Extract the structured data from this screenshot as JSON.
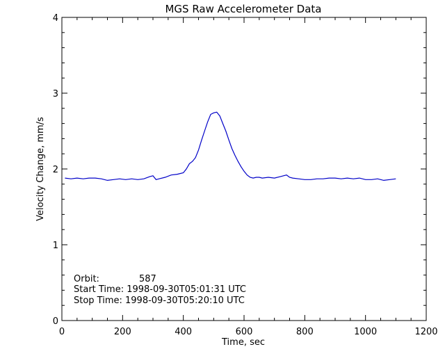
{
  "colors": {
    "series": "#0000c8",
    "axes": "#000000",
    "background": "#ffffff"
  },
  "chart_data": {
    "type": "line",
    "title": "MGS Raw Accelerometer Data",
    "xlabel": "Time, sec",
    "ylabel": "Velocity Change, mm/s",
    "xlim": [
      0,
      1200
    ],
    "ylim": [
      0,
      4
    ],
    "xticks": [
      0,
      200,
      400,
      600,
      800,
      1000,
      1200
    ],
    "xtick_labels": [
      "0",
      "200",
      "400",
      "600",
      "800",
      "1000",
      "1200"
    ],
    "yticks": [
      0,
      1,
      2,
      3,
      4
    ],
    "ytick_labels": [
      "0",
      "1",
      "2",
      "3",
      "4"
    ],
    "grid": false,
    "annotations": {
      "orbit_label": "Orbit:",
      "orbit_value": "587",
      "start_time": "Start Time: 1998-09-30T05:01:31 UTC",
      "stop_time": "Stop Time: 1998-09-30T05:20:10 UTC"
    },
    "series": [
      {
        "x": [
          10,
          30,
          50,
          70,
          90,
          110,
          130,
          150,
          170,
          190,
          210,
          230,
          250,
          270,
          290,
          300,
          310,
          320,
          340,
          360,
          380,
          400,
          410,
          420,
          430,
          440,
          450,
          460,
          470,
          480,
          490,
          500,
          510,
          520,
          530,
          540,
          550,
          560,
          570,
          580,
          590,
          600,
          610,
          620,
          630,
          640,
          650,
          660,
          680,
          700,
          720,
          740,
          750,
          760,
          780,
          800,
          820,
          840,
          860,
          880,
          900,
          920,
          940,
          960,
          980,
          1000,
          1020,
          1040,
          1060,
          1080,
          1100
        ],
        "y": [
          1.88,
          1.87,
          1.88,
          1.87,
          1.88,
          1.88,
          1.87,
          1.85,
          1.86,
          1.87,
          1.86,
          1.87,
          1.86,
          1.87,
          1.9,
          1.91,
          1.86,
          1.87,
          1.89,
          1.92,
          1.93,
          1.95,
          2.0,
          2.07,
          2.1,
          2.15,
          2.25,
          2.38,
          2.5,
          2.62,
          2.72,
          2.74,
          2.75,
          2.7,
          2.6,
          2.5,
          2.38,
          2.27,
          2.18,
          2.1,
          2.03,
          1.97,
          1.92,
          1.89,
          1.88,
          1.89,
          1.89,
          1.88,
          1.89,
          1.88,
          1.9,
          1.92,
          1.89,
          1.88,
          1.87,
          1.86,
          1.86,
          1.87,
          1.87,
          1.88,
          1.88,
          1.87,
          1.88,
          1.87,
          1.88,
          1.86,
          1.86,
          1.87,
          1.85,
          1.86,
          1.87
        ]
      }
    ]
  }
}
